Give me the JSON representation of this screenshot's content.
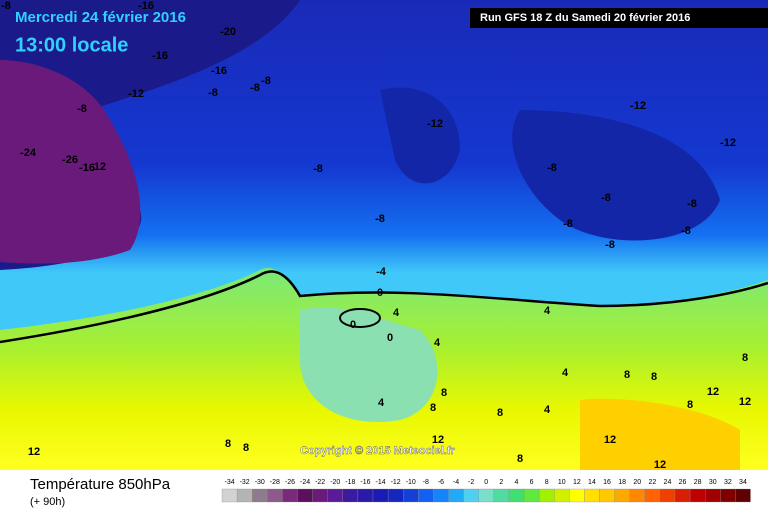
{
  "header": {
    "date": "Mercredi 24 février 2016",
    "time": "13:00 locale",
    "run": "Run GFS 18 Z du Samedi 20 février 2016"
  },
  "copyright": "Copyright © 2015 Meteociel.fr",
  "legend": {
    "title": "Température 850hPa",
    "lead": "(+ 90h)",
    "values": [
      -34,
      -32,
      -30,
      -28,
      -26,
      -24,
      -22,
      -20,
      -18,
      -16,
      -14,
      -12,
      -10,
      -8,
      -6,
      -4,
      -2,
      0,
      2,
      4,
      6,
      8,
      10,
      12,
      14,
      16,
      18,
      20,
      22,
      24,
      26,
      28,
      30,
      32,
      34
    ],
    "colors": [
      "#d2d2d2",
      "#b4b4b4",
      "#8c7c8c",
      "#8c5a8c",
      "#7a2a7a",
      "#5a105a",
      "#6a1a7a",
      "#5a1a9a",
      "#3a1aa0",
      "#2a1aaa",
      "#1a1ab4",
      "#1428c0",
      "#1440d8",
      "#1460f0",
      "#1484f8",
      "#20aaf8",
      "#50d0f0",
      "#78e0c8",
      "#50dca0",
      "#40e070",
      "#60e840",
      "#a0f000",
      "#d0f000",
      "#ffff00",
      "#ffe000",
      "#ffc800",
      "#ffa800",
      "#ff8800",
      "#ff6400",
      "#f04000",
      "#d82000",
      "#c00000",
      "#a00000",
      "#800000",
      "#600000"
    ]
  },
  "map_labels": [
    -8,
    -16,
    -20,
    -16,
    -16,
    -8,
    -8,
    -8,
    -12,
    -8,
    -24,
    -26,
    -16,
    12,
    -12,
    -12,
    -12,
    -8,
    -8,
    -8,
    -8,
    -8,
    -8,
    -8,
    -8,
    -4,
    0,
    0,
    4,
    0,
    4,
    4,
    4,
    8,
    8,
    8,
    12,
    4,
    8,
    8,
    8,
    4,
    8,
    12,
    12,
    8,
    8,
    12,
    12,
    12,
    8
  ]
}
